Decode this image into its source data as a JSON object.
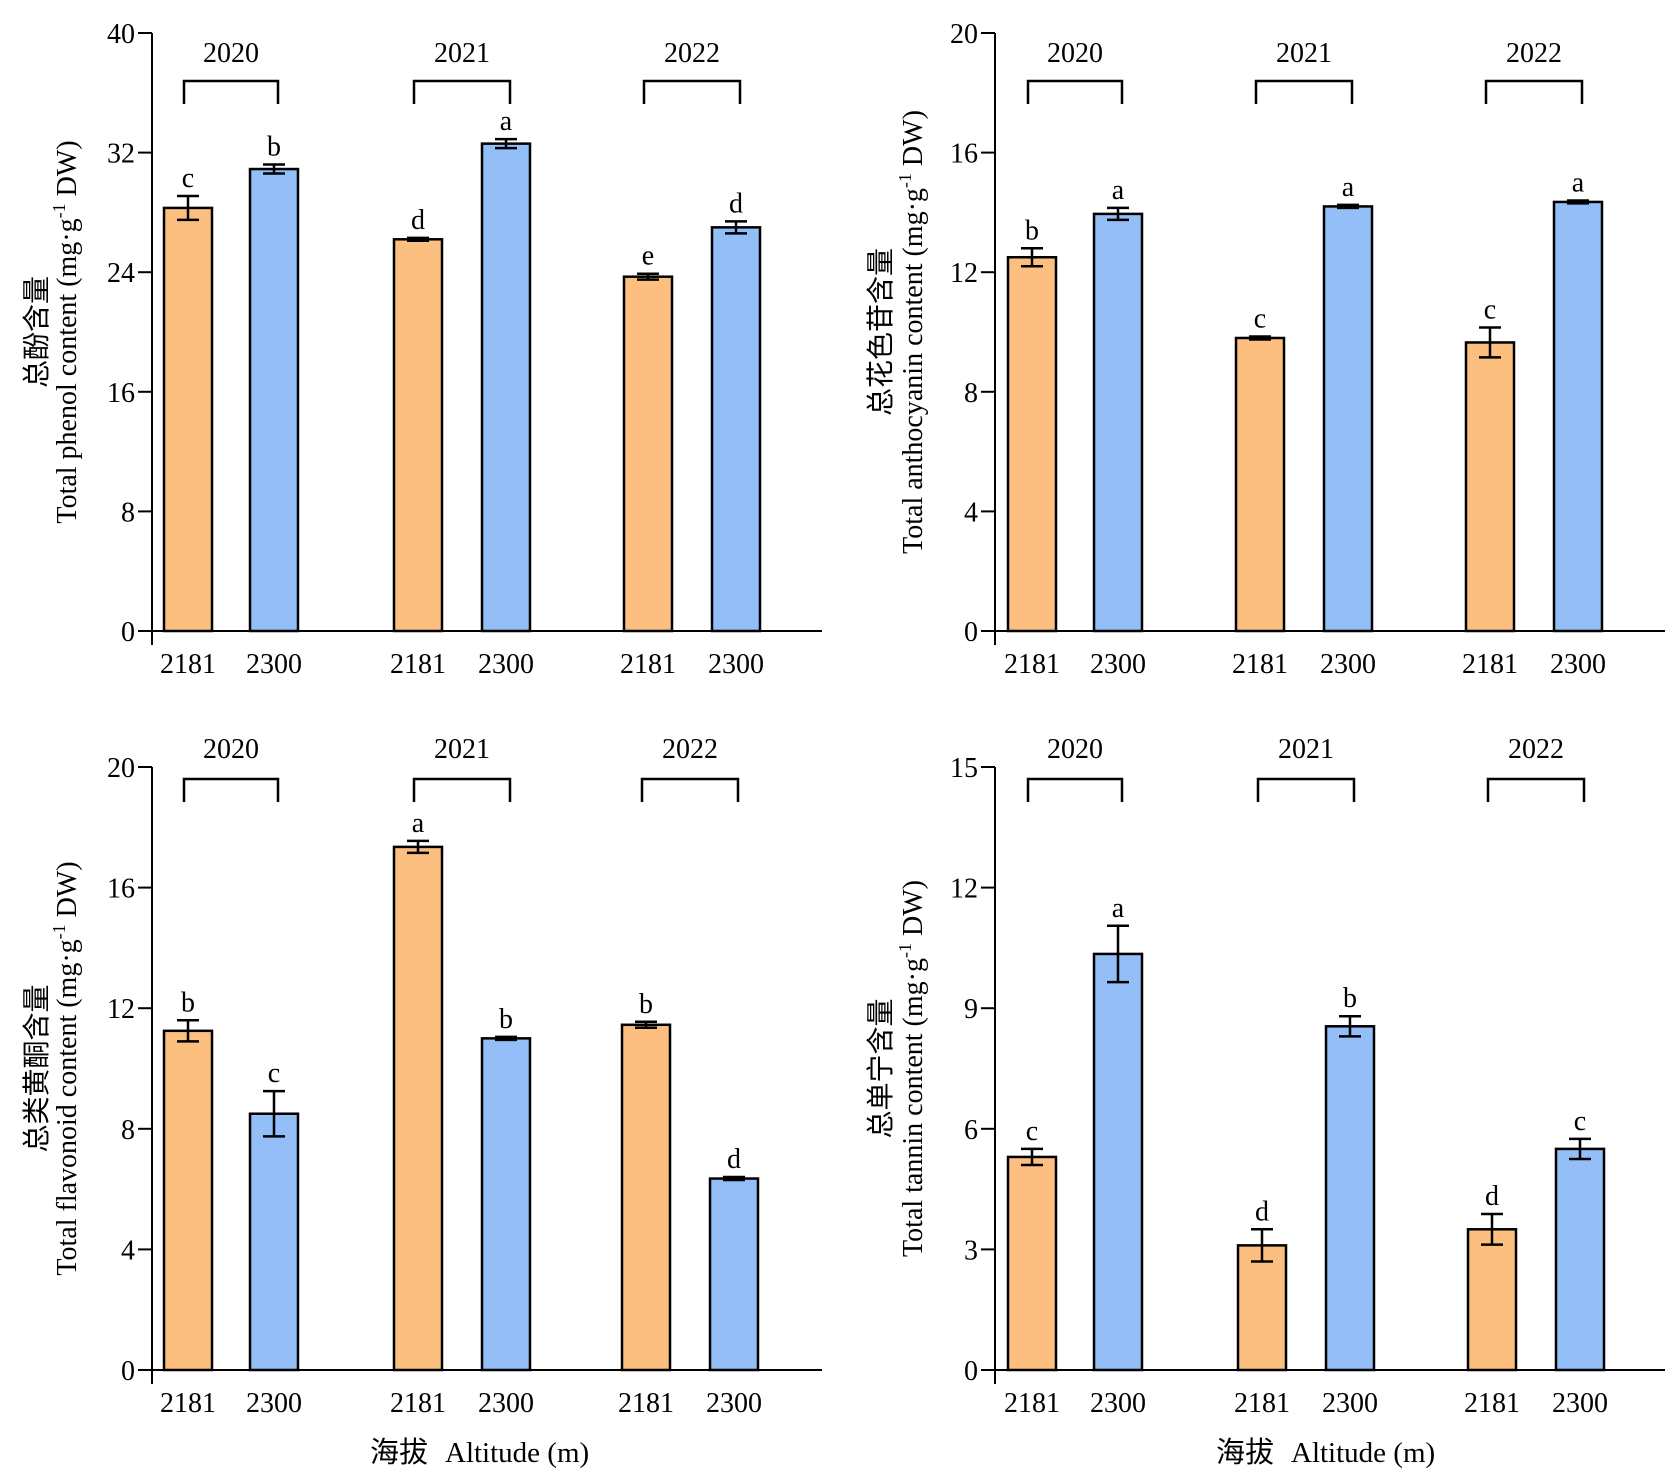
{
  "figure": {
    "xlabel_cn": "海拔",
    "xlabel_en": "Altitude (m)",
    "colors": {
      "alt_2181": "#FCBF80",
      "alt_2300": "#93BEF7",
      "axis": "#000000"
    }
  },
  "chart_data": [
    {
      "id": "phenol",
      "type": "bar",
      "ylabel_cn": "总酚含量",
      "ylabel_en": "Total phenol content (mg·g",
      "ylabel_sup": "-1",
      "ylabel_tail": " DW)",
      "ylim": [
        0,
        40
      ],
      "yticks": [
        0,
        8,
        16,
        24,
        32,
        40
      ],
      "groups": [
        {
          "year": "2020",
          "bars": [
            {
              "x": "2181",
              "value": 28.3,
              "err": 0.8,
              "letter": "c"
            },
            {
              "x": "2300",
              "value": 30.9,
              "err": 0.3,
              "letter": "b"
            }
          ]
        },
        {
          "year": "2021",
          "bars": [
            {
              "x": "2181",
              "value": 26.2,
              "err": 0.1,
              "letter": "d"
            },
            {
              "x": "2300",
              "value": 32.6,
              "err": 0.3,
              "letter": "a"
            }
          ]
        },
        {
          "year": "2022",
          "bars": [
            {
              "x": "2181",
              "value": 23.7,
              "err": 0.2,
              "letter": "e"
            },
            {
              "x": "2300",
              "value": 27.0,
              "err": 0.4,
              "letter": "d"
            }
          ]
        }
      ]
    },
    {
      "id": "anthocyanin",
      "type": "bar",
      "ylabel_cn": "总花色苷含量",
      "ylabel_en": "Total anthocyanin content (mg·g",
      "ylabel_sup": "-1",
      "ylabel_tail": " DW)",
      "ylim": [
        0,
        20
      ],
      "yticks": [
        0,
        4,
        8,
        12,
        16,
        20
      ],
      "groups": [
        {
          "year": "2020",
          "bars": [
            {
              "x": "2181",
              "value": 12.5,
              "err": 0.3,
              "letter": "b"
            },
            {
              "x": "2300",
              "value": 13.95,
              "err": 0.2,
              "letter": "a"
            }
          ]
        },
        {
          "year": "2021",
          "bars": [
            {
              "x": "2181",
              "value": 9.8,
              "err": 0.05,
              "letter": "c"
            },
            {
              "x": "2300",
              "value": 14.2,
              "err": 0.05,
              "letter": "a"
            }
          ]
        },
        {
          "year": "2022",
          "bars": [
            {
              "x": "2181",
              "value": 9.65,
              "err": 0.5,
              "letter": "c"
            },
            {
              "x": "2300",
              "value": 14.35,
              "err": 0.05,
              "letter": "a"
            }
          ]
        }
      ]
    },
    {
      "id": "flavonoid",
      "type": "bar",
      "ylabel_cn": "总类黄酮含量",
      "ylabel_en": "Total flavonoid content (mg·g",
      "ylabel_sup": "-1",
      "ylabel_tail": " DW)",
      "ylim": [
        0,
        20
      ],
      "yticks": [
        0,
        4,
        8,
        12,
        16,
        20
      ],
      "groups": [
        {
          "year": "2020",
          "bars": [
            {
              "x": "2181",
              "value": 11.25,
              "err": 0.35,
              "letter": "b"
            },
            {
              "x": "2300",
              "value": 8.5,
              "err": 0.75,
              "letter": "c"
            }
          ]
        },
        {
          "year": "2021",
          "bars": [
            {
              "x": "2181",
              "value": 17.35,
              "err": 0.2,
              "letter": "a"
            },
            {
              "x": "2300",
              "value": 11.0,
              "err": 0.05,
              "letter": "b"
            }
          ]
        },
        {
          "year": "2022",
          "bars": [
            {
              "x": "2181",
              "value": 11.45,
              "err": 0.1,
              "letter": "b"
            },
            {
              "x": "2300",
              "value": 6.35,
              "err": 0.05,
              "letter": "d"
            }
          ]
        }
      ]
    },
    {
      "id": "tannin",
      "type": "bar",
      "ylabel_cn": "总单宁含量",
      "ylabel_en": "Total tannin content (mg·g",
      "ylabel_sup": "-1",
      "ylabel_tail": " DW)",
      "ylim": [
        0,
        15
      ],
      "yticks": [
        0,
        3,
        6,
        9,
        12,
        15
      ],
      "groups": [
        {
          "year": "2020",
          "bars": [
            {
              "x": "2181",
              "value": 5.3,
              "err": 0.2,
              "letter": "c"
            },
            {
              "x": "2300",
              "value": 10.35,
              "err": 0.7,
              "letter": "a"
            }
          ]
        },
        {
          "year": "2021",
          "bars": [
            {
              "x": "2181",
              "value": 3.1,
              "err": 0.4,
              "letter": "d"
            },
            {
              "x": "2300",
              "value": 8.55,
              "err": 0.25,
              "letter": "b"
            }
          ]
        },
        {
          "year": "2022",
          "bars": [
            {
              "x": "2181",
              "value": 3.5,
              "err": 0.38,
              "letter": "d"
            },
            {
              "x": "2300",
              "value": 5.5,
              "err": 0.25,
              "letter": "c"
            }
          ]
        }
      ]
    }
  ]
}
